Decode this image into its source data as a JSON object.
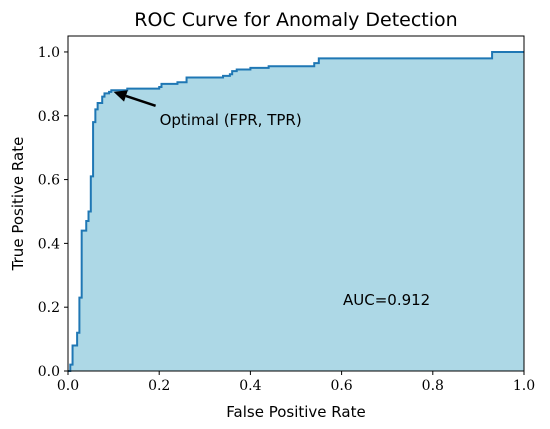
{
  "chart_data": {
    "type": "area",
    "title": "ROC Curve for Anomaly Detection",
    "xlabel": "False Positive Rate",
    "ylabel": "True Positive Rate",
    "xlim": [
      0.0,
      1.0
    ],
    "ylim": [
      0.0,
      1.05
    ],
    "xticks": [
      "0.0",
      "0.2",
      "0.4",
      "0.6",
      "0.8",
      "1.0"
    ],
    "yticks": [
      "0.0",
      "0.2",
      "0.4",
      "0.6",
      "0.8",
      "1.0"
    ],
    "grid": false,
    "fill_color": "#add8e6",
    "line_color": "#1f77b4",
    "auc_text": "AUC=0.912",
    "annotation": {
      "text": "Optimal (FPR, TPR)",
      "point": [
        0.1,
        0.875
      ]
    },
    "series": [
      {
        "x": [
          0.0,
          0.005,
          0.005,
          0.01,
          0.01,
          0.02,
          0.02,
          0.025,
          0.025,
          0.03,
          0.03,
          0.04,
          0.04,
          0.045,
          0.045,
          0.05,
          0.05,
          0.055,
          0.055,
          0.06,
          0.06,
          0.065,
          0.065,
          0.075,
          0.075,
          0.08,
          0.08,
          0.09,
          0.09,
          0.095,
          0.095,
          0.13,
          0.13,
          0.2,
          0.2,
          0.205,
          0.205,
          0.24,
          0.24,
          0.26,
          0.26,
          0.34,
          0.34,
          0.355,
          0.355,
          0.36,
          0.36,
          0.37,
          0.37,
          0.4,
          0.4,
          0.44,
          0.44,
          0.54,
          0.54,
          0.55,
          0.55,
          0.93,
          0.93,
          1.0
        ],
        "y": [
          0.0,
          0.0,
          0.02,
          0.02,
          0.08,
          0.08,
          0.12,
          0.12,
          0.23,
          0.23,
          0.44,
          0.44,
          0.47,
          0.47,
          0.5,
          0.5,
          0.61,
          0.61,
          0.78,
          0.78,
          0.82,
          0.82,
          0.84,
          0.84,
          0.86,
          0.86,
          0.87,
          0.87,
          0.875,
          0.875,
          0.88,
          0.88,
          0.885,
          0.885,
          0.89,
          0.89,
          0.9,
          0.9,
          0.905,
          0.905,
          0.92,
          0.92,
          0.925,
          0.925,
          0.93,
          0.93,
          0.94,
          0.94,
          0.945,
          0.945,
          0.95,
          0.95,
          0.955,
          0.955,
          0.965,
          0.965,
          0.98,
          0.98,
          1.0,
          1.0
        ]
      }
    ]
  }
}
